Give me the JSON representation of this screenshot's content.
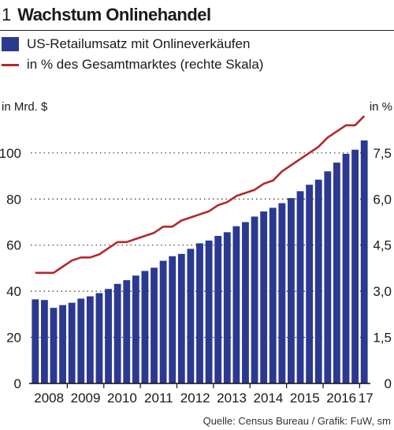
{
  "header": {
    "number": "1",
    "title": "Wachstum Onlinehandel"
  },
  "legend": [
    {
      "label": "US-Retailumsatz mit Onlineverkäufen",
      "color": "#2b3990",
      "kind": "bar"
    },
    {
      "label": "in % des Gesamtmarktes (rechte Skala)",
      "color": "#b3282d",
      "kind": "line"
    }
  ],
  "source": "Quelle: Census Bureau / Grafik: FuW, sm",
  "chart_data": {
    "type": "bar",
    "ylabel_left": "in Mrd. $",
    "ylabel_right": "in %",
    "ylim": [
      0,
      115
    ],
    "yticks_left": [
      "0",
      "20",
      "40",
      "60",
      "80",
      "100"
    ],
    "yticks_left_values": [
      0,
      20,
      40,
      60,
      80,
      100
    ],
    "y2lim": [
      0,
      8.625
    ],
    "yticks_right": [
      "0",
      "1,5",
      "3,0",
      "4,5",
      "6,0",
      "7,5"
    ],
    "yticks_right_values": [
      0,
      1.5,
      3.0,
      4.5,
      6.0,
      7.5
    ],
    "x_labels": [
      "2008",
      "2009",
      "2010",
      "2011",
      "2012",
      "2013",
      "2014",
      "2015",
      "2016",
      "17"
    ],
    "x_label_bar_index": [
      0,
      4,
      8,
      12,
      16,
      20,
      24,
      28,
      32,
      36
    ],
    "grid": "dotted horizontal",
    "series": [
      {
        "name": "US-Retailumsatz mit Onlineverkäufen",
        "type": "bar",
        "color": "#2b3990",
        "values": [
          36.5,
          36.2,
          32.8,
          34.0,
          35.0,
          36.8,
          37.8,
          39.2,
          41.0,
          43.2,
          44.8,
          46.8,
          48.8,
          50.2,
          53.2,
          55.2,
          56.2,
          58.4,
          60.8,
          62.0,
          64.0,
          65.6,
          68.2,
          70.0,
          72.4,
          74.6,
          76.2,
          78.2,
          80.4,
          83.4,
          86.2,
          88.4,
          92.0,
          95.8,
          99.6,
          101.4,
          105.4
        ]
      },
      {
        "name": "in % des Gesamtmarktes (rechte Skala)",
        "type": "line",
        "color": "#b3282d",
        "values": [
          3.6,
          3.6,
          3.6,
          3.8,
          4.0,
          4.1,
          4.1,
          4.2,
          4.4,
          4.6,
          4.6,
          4.7,
          4.8,
          4.9,
          5.1,
          5.1,
          5.3,
          5.4,
          5.5,
          5.6,
          5.8,
          5.9,
          6.1,
          6.2,
          6.3,
          6.5,
          6.6,
          6.9,
          7.1,
          7.3,
          7.5,
          7.7,
          8.0,
          8.2,
          8.4,
          8.4,
          8.7
        ]
      }
    ]
  }
}
